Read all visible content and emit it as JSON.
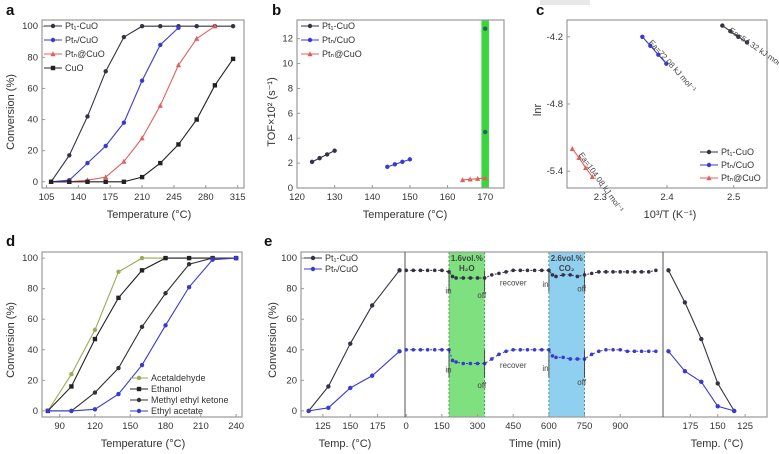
{
  "chart_data": [
    {
      "panel": "a",
      "type": "line",
      "xlabel": "Temperature (°C)",
      "ylabel": "Conversion (%)",
      "xlim": [
        100,
        322
      ],
      "ylim": [
        -4,
        104
      ],
      "xticks": [
        105,
        140,
        175,
        210,
        245,
        280,
        315
      ],
      "yticks": [
        0,
        20,
        40,
        60,
        80,
        100
      ],
      "legend_position": "top-left",
      "series": [
        {
          "name": "Pt1-CuO",
          "color": "#333344",
          "marker": "circle",
          "x": [
            110,
            130,
            150,
            170,
            190,
            210,
            230,
            250,
            270,
            290,
            310
          ],
          "y": [
            0,
            17,
            42,
            71,
            93,
            100,
            100,
            100,
            100,
            100,
            100
          ]
        },
        {
          "name": "Ptn/CuO",
          "color": "#3a3ad0",
          "marker": "circle",
          "x": [
            110,
            130,
            150,
            170,
            190,
            210,
            230,
            250
          ],
          "y": [
            0,
            1,
            12,
            23,
            38,
            65,
            88,
            99
          ]
        },
        {
          "name": "Ptn@CuO",
          "color": "#e06060",
          "marker": "triangle",
          "x": [
            110,
            130,
            150,
            170,
            190,
            210,
            230,
            250,
            270,
            290
          ],
          "y": [
            0,
            0,
            1,
            3,
            13,
            28,
            49,
            75,
            92,
            100
          ]
        },
        {
          "name": "CuO",
          "color": "#222222",
          "marker": "square",
          "x": [
            110,
            130,
            150,
            170,
            190,
            210,
            230,
            250,
            270,
            290,
            310
          ],
          "y": [
            0,
            0,
            0,
            0,
            0,
            3,
            12,
            24,
            40,
            62,
            79
          ]
        }
      ]
    },
    {
      "panel": "b",
      "type": "scatter",
      "xlabel": "Temperature (°C)",
      "ylabel": "TOF×10² (s⁻¹)",
      "xlim": [
        120,
        175
      ],
      "ylim": [
        0,
        13.5
      ],
      "xticks": [
        120,
        130,
        140,
        150,
        160,
        170
      ],
      "yticks": [
        0,
        2,
        4,
        6,
        8,
        10,
        12
      ],
      "legend_position": "top-left",
      "highlight_band": {
        "x": [
          169,
          171
        ],
        "color": "#39d63d"
      },
      "series": [
        {
          "name": "Pt1-CuO",
          "color": "#333344",
          "marker": "circle",
          "x": [
            124,
            126,
            128,
            130
          ],
          "y": [
            2.1,
            2.4,
            2.7,
            3.0
          ],
          "band_point": {
            "x": 170,
            "y": 12.8
          }
        },
        {
          "name": "Ptn/CuO",
          "color": "#3a3ad0",
          "marker": "circle",
          "x": [
            144,
            146,
            148,
            150
          ],
          "y": [
            1.7,
            1.9,
            2.1,
            2.3
          ],
          "band_point": {
            "x": 170,
            "y": 4.5
          }
        },
        {
          "name": "Ptn@CuO",
          "color": "#e06060",
          "marker": "triangle",
          "x": [
            164,
            166,
            168,
            170
          ],
          "y": [
            0.65,
            0.7,
            0.75,
            0.8
          ]
        }
      ]
    },
    {
      "panel": "c",
      "type": "line",
      "xlabel": "10³/T (K⁻¹)",
      "ylabel": "lnr",
      "xlim": [
        2.25,
        2.55
      ],
      "ylim": [
        -5.55,
        -4.05
      ],
      "xticks": [
        2.3,
        2.4,
        2.5
      ],
      "yticks": [
        -4.2,
        -4.8,
        -5.4
      ],
      "legend_position": "bottom-right",
      "series": [
        {
          "name": "Pt1-CuO",
          "color": "#333344",
          "marker": "circle",
          "x": [
            2.483,
            2.495,
            2.507,
            2.52
          ],
          "y": [
            -4.1,
            -4.15,
            -4.2,
            -4.25
          ],
          "annotation": "Ea=54.32 kJ mol⁻¹"
        },
        {
          "name": "Ptn/CuO",
          "color": "#3a3ad0",
          "marker": "circle",
          "x": [
            2.363,
            2.375,
            2.387,
            2.399
          ],
          "y": [
            -4.2,
            -4.28,
            -4.36,
            -4.44
          ],
          "annotation": "Ea=72.08 kJ mol⁻¹"
        },
        {
          "name": "Ptn@CuO",
          "color": "#e06060",
          "marker": "triangle",
          "x": [
            2.258,
            2.268,
            2.278,
            2.288
          ],
          "y": [
            -5.2,
            -5.28,
            -5.37,
            -5.45
          ],
          "annotation": "Ea=104.08 kJ mol⁻¹"
        }
      ]
    },
    {
      "panel": "d",
      "type": "line",
      "xlabel": "Temperature (°C)",
      "ylabel": "Conversion (%)",
      "xlim": [
        75,
        245
      ],
      "ylim": [
        -4,
        104
      ],
      "xticks": [
        90,
        120,
        150,
        180,
        210,
        240
      ],
      "yticks": [
        0,
        20,
        40,
        60,
        80,
        100
      ],
      "legend_position": "bottom-right",
      "series": [
        {
          "name": "Acetaldehyde",
          "color": "#9aaa55",
          "marker": "circle",
          "x": [
            80,
            100,
            120,
            140,
            160,
            180,
            200,
            220,
            240
          ],
          "y": [
            0,
            24,
            53,
            91,
            100,
            100,
            100,
            100,
            100
          ]
        },
        {
          "name": "Ethanol",
          "color": "#222222",
          "marker": "square",
          "x": [
            80,
            100,
            120,
            140,
            160,
            180,
            200,
            220,
            240
          ],
          "y": [
            0,
            16,
            47,
            74,
            92,
            100,
            100,
            100,
            100
          ]
        },
        {
          "name": "Methyl ethyl ketone",
          "color": "#333333",
          "marker": "circle",
          "x": [
            80,
            100,
            120,
            140,
            160,
            180,
            200,
            220,
            240
          ],
          "y": [
            0,
            0,
            12,
            28,
            55,
            77,
            96,
            100,
            100
          ]
        },
        {
          "name": "Ethyl acetate",
          "color": "#3a3ad0",
          "marker": "circle",
          "x": [
            80,
            100,
            120,
            140,
            160,
            180,
            200,
            220,
            240
          ],
          "y": [
            0,
            0,
            1,
            11,
            30,
            56,
            81,
            99,
            100
          ]
        }
      ]
    },
    {
      "panel": "e",
      "type": "line",
      "ylabel": "Conversion (%)",
      "ylim": [
        -4,
        104
      ],
      "yticks": [
        0,
        20,
        40,
        60,
        80,
        100
      ],
      "legend_position": "top-left",
      "segments": [
        {
          "xlabel": "Temp. (°C)",
          "xlim": [
            105,
            200
          ],
          "xticks": [
            125,
            150,
            175
          ],
          "reversed": false
        },
        {
          "xlabel": "Time (min)",
          "xlim": [
            -5,
            1080
          ],
          "xticks": [
            0,
            150,
            300,
            450,
            600,
            750,
            900
          ],
          "reversed": false
        },
        {
          "xlabel": "Temp. (°C)",
          "xlim": [
            200,
            105
          ],
          "xticks": [
            175,
            150,
            125
          ],
          "reversed": true
        }
      ],
      "bands": [
        {
          "x": [
            180,
            330
          ],
          "color": "#7ee07e",
          "label_line1": "1.6vol.%",
          "label_line2": "H₂O",
          "label_color": "#1a6a1a"
        },
        {
          "x": [
            600,
            750
          ],
          "color": "#8fd0f0",
          "label_line1": "2.6vol.%",
          "label_line2": "CO₂",
          "label_color": "#1a3a8a"
        }
      ],
      "annotations": [
        {
          "text": "in",
          "segment": 1,
          "x": 178,
          "y": 77
        },
        {
          "text": "off",
          "segment": 1,
          "x": 318,
          "y": 74
        },
        {
          "text": "recover",
          "segment": 1,
          "x": 450,
          "y": 82
        },
        {
          "text": "in",
          "segment": 1,
          "x": 586,
          "y": 81
        },
        {
          "text": "off",
          "segment": 1,
          "x": 738,
          "y": 78
        },
        {
          "text": "in",
          "segment": 1,
          "x": 178,
          "y": 25
        },
        {
          "text": "off",
          "segment": 1,
          "x": 318,
          "y": 15
        },
        {
          "text": "recover",
          "segment": 1,
          "x": 450,
          "y": 28
        },
        {
          "text": "in",
          "segment": 1,
          "x": 586,
          "y": 26
        },
        {
          "text": "off",
          "segment": 1,
          "x": 738,
          "y": 17
        }
      ],
      "series": [
        {
          "name": "Pt1-CuO",
          "color": "#333344",
          "marker": "circle",
          "heat": {
            "x": [
              112,
              130,
              150,
              170,
              195
            ],
            "y": [
              0,
              16,
              44,
              69,
              92
            ]
          },
          "time": {
            "x": [
              0,
              30,
              60,
              90,
              120,
              150,
              180,
              195,
              210,
              240,
              270,
              300,
              330,
              360,
              390,
              420,
              450,
              480,
              510,
              540,
              570,
              600,
              615,
              630,
              660,
              690,
              720,
              750,
              780,
              810,
              840,
              870,
              900,
              930,
              960,
              990,
              1020,
              1050
            ],
            "y": [
              92,
              92,
              92,
              92,
              92,
              92,
              91,
              88,
              87,
              87,
              87,
              87,
              87,
              89,
              90,
              91,
              92,
              92,
              92,
              92,
              92,
              92,
              89,
              88,
              89,
              89,
              88,
              89,
              90,
              91,
              91,
              91,
              91,
              91,
              91,
              91,
              91,
              92
            ]
          },
          "cool": {
            "x": [
              195,
              180,
              165,
              150,
              135
            ],
            "y": [
              92,
              71,
              47,
              18,
              0
            ]
          }
        },
        {
          "name": "Ptn/CuO",
          "color": "#3a3ad0",
          "marker": "circle",
          "heat": {
            "x": [
              112,
              130,
              150,
              170,
              195
            ],
            "y": [
              0,
              2,
              15,
              23,
              39
            ]
          },
          "time": {
            "x": [
              0,
              30,
              60,
              90,
              120,
              150,
              180,
              195,
              210,
              240,
              270,
              300,
              330,
              360,
              390,
              420,
              450,
              480,
              510,
              540,
              570,
              600,
              615,
              630,
              660,
              690,
              720,
              750,
              780,
              810,
              840,
              870,
              900,
              930,
              960,
              990,
              1020,
              1050
            ],
            "y": [
              40,
              40,
              40,
              40,
              40,
              40,
              40,
              33,
              32,
              31,
              31,
              31,
              31,
              34,
              37,
              39,
              40,
              40,
              40,
              40,
              40,
              40,
              36,
              35,
              35,
              34,
              34,
              34,
              37,
              39,
              40,
              40,
              40,
              39,
              39,
              39,
              39,
              39
            ]
          },
          "cool": {
            "x": [
              195,
              180,
              165,
              150,
              135
            ],
            "y": [
              39,
              26,
              19,
              3,
              0
            ]
          }
        }
      ]
    }
  ]
}
